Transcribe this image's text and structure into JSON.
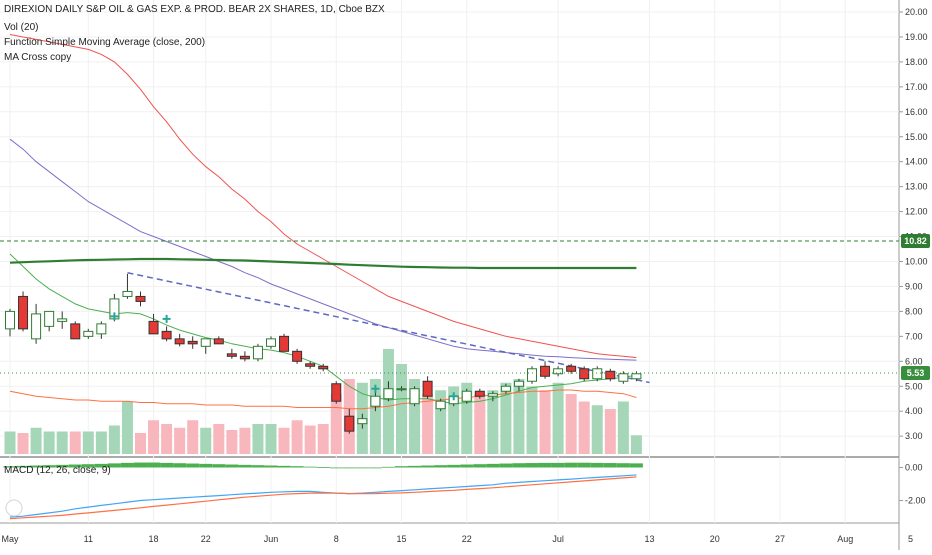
{
  "legend": {
    "title": "DIREXION DAILY S&P OIL & GAS EXP. & PROD. BEAR 2X SHARES, 1D, Cboe BZX",
    "vol": "Vol (20)",
    "sma": "Function Simple Moving Average (close, 200)",
    "ma_cross": "MA Cross copy",
    "macd": "MACD (12, 26, close, 9)"
  },
  "colors": {
    "up_body": "#ffffff",
    "up_border": "#2e7d32",
    "down_body": "#e53935",
    "down_border": "#333333",
    "vol_up": "#a5d6b8",
    "vol_down": "#f7b7bd",
    "ma_fast": "#4caf50",
    "ma_mid": "#ef5350",
    "ma_slow": "#7e6fc9",
    "ma_orange": "#ff7043",
    "sma200": "#2e7d32",
    "trend": "#5c6bc0",
    "level_high": "#2e7d32",
    "level_last": "#388e3c",
    "macd_hist": "#4caf50",
    "macd_line": "#42a5f5",
    "signal_line": "#ff7043"
  },
  "chart_data": {
    "type": "candlestick",
    "price_axis": {
      "ylim": [
        2.5,
        20.5
      ],
      "ticks": [
        "3.00",
        "4.00",
        "5.00",
        "6.00",
        "7.00",
        "8.00",
        "9.00",
        "10.00",
        "11.00",
        "12.00",
        "13.00",
        "14.00",
        "15.00",
        "16.00",
        "17.00",
        "18.00",
        "19.00",
        "20.00"
      ]
    },
    "macd_axis": {
      "ylim": [
        -3.2,
        0.6
      ],
      "ticks": [
        "0.00",
        "-2.00"
      ]
    },
    "x_axis": {
      "ticks": [
        {
          "label": "May",
          "i": 0
        },
        {
          "label": "11",
          "i": 6
        },
        {
          "label": "18",
          "i": 11
        },
        {
          "label": "22",
          "i": 15
        },
        {
          "label": "Jun",
          "i": 20
        },
        {
          "label": "8",
          "i": 25
        },
        {
          "label": "15",
          "i": 30
        },
        {
          "label": "22",
          "i": 35
        },
        {
          "label": "Jul",
          "i": 42
        },
        {
          "label": "13",
          "i": 49
        },
        {
          "label": "20",
          "i": 54
        },
        {
          "label": "27",
          "i": 59
        },
        {
          "label": "Aug",
          "i": 64
        },
        {
          "label": "5",
          "i": 69
        }
      ]
    },
    "candles": [
      {
        "o": 7.3,
        "h": 8.1,
        "l": 7.0,
        "c": 8.0
      },
      {
        "o": 8.6,
        "h": 8.8,
        "l": 7.2,
        "c": 7.3
      },
      {
        "o": 6.9,
        "h": 8.3,
        "l": 6.7,
        "c": 7.9
      },
      {
        "o": 7.4,
        "h": 8.0,
        "l": 7.2,
        "c": 8.0
      },
      {
        "o": 7.6,
        "h": 8.0,
        "l": 7.3,
        "c": 7.7
      },
      {
        "o": 7.5,
        "h": 7.6,
        "l": 6.9,
        "c": 6.9
      },
      {
        "o": 7.0,
        "h": 7.3,
        "l": 6.9,
        "c": 7.2
      },
      {
        "o": 7.1,
        "h": 7.6,
        "l": 6.9,
        "c": 7.5
      },
      {
        "o": 7.7,
        "h": 8.7,
        "l": 7.6,
        "c": 8.5
      },
      {
        "o": 8.6,
        "h": 9.5,
        "l": 8.5,
        "c": 8.8
      },
      {
        "o": 8.6,
        "h": 8.8,
        "l": 8.2,
        "c": 8.4
      },
      {
        "o": 7.6,
        "h": 7.9,
        "l": 7.1,
        "c": 7.1
      },
      {
        "o": 7.2,
        "h": 7.4,
        "l": 6.8,
        "c": 6.9
      },
      {
        "o": 6.9,
        "h": 7.1,
        "l": 6.6,
        "c": 6.7
      },
      {
        "o": 6.8,
        "h": 7.0,
        "l": 6.5,
        "c": 6.7
      },
      {
        "o": 6.6,
        "h": 6.9,
        "l": 6.3,
        "c": 6.9
      },
      {
        "o": 6.9,
        "h": 7.0,
        "l": 6.7,
        "c": 6.7
      },
      {
        "o": 6.3,
        "h": 6.5,
        "l": 6.1,
        "c": 6.2
      },
      {
        "o": 6.2,
        "h": 6.4,
        "l": 6.0,
        "c": 6.1
      },
      {
        "o": 6.1,
        "h": 6.7,
        "l": 6.0,
        "c": 6.6
      },
      {
        "o": 6.6,
        "h": 7.0,
        "l": 6.5,
        "c": 6.9
      },
      {
        "o": 7.0,
        "h": 7.1,
        "l": 6.4,
        "c": 6.4
      },
      {
        "o": 6.4,
        "h": 6.5,
        "l": 5.9,
        "c": 6.0
      },
      {
        "o": 5.9,
        "h": 6.0,
        "l": 5.7,
        "c": 5.8
      },
      {
        "o": 5.8,
        "h": 5.9,
        "l": 5.6,
        "c": 5.7
      },
      {
        "o": 5.1,
        "h": 5.2,
        "l": 4.3,
        "c": 4.4
      },
      {
        "o": 3.8,
        "h": 4.1,
        "l": 3.1,
        "c": 3.2
      },
      {
        "o": 3.5,
        "h": 3.9,
        "l": 3.3,
        "c": 3.7
      },
      {
        "o": 4.2,
        "h": 4.8,
        "l": 4.0,
        "c": 4.6
      },
      {
        "o": 4.5,
        "h": 5.2,
        "l": 4.4,
        "c": 4.9
      },
      {
        "o": 4.9,
        "h": 5.0,
        "l": 4.8,
        "c": 4.9
      },
      {
        "o": 4.3,
        "h": 5.0,
        "l": 4.2,
        "c": 4.9
      },
      {
        "o": 5.2,
        "h": 5.4,
        "l": 4.5,
        "c": 4.6
      },
      {
        "o": 4.1,
        "h": 4.5,
        "l": 4.0,
        "c": 4.4
      },
      {
        "o": 4.3,
        "h": 4.7,
        "l": 4.2,
        "c": 4.6
      },
      {
        "o": 4.4,
        "h": 4.9,
        "l": 4.3,
        "c": 4.8
      },
      {
        "o": 4.8,
        "h": 4.9,
        "l": 4.5,
        "c": 4.6
      },
      {
        "o": 4.6,
        "h": 4.8,
        "l": 4.4,
        "c": 4.7
      },
      {
        "o": 4.8,
        "h": 5.1,
        "l": 4.7,
        "c": 5.0
      },
      {
        "o": 5.0,
        "h": 5.3,
        "l": 4.8,
        "c": 5.2
      },
      {
        "o": 5.2,
        "h": 5.8,
        "l": 5.1,
        "c": 5.7
      },
      {
        "o": 5.8,
        "h": 6.0,
        "l": 5.3,
        "c": 5.4
      },
      {
        "o": 5.5,
        "h": 5.8,
        "l": 5.4,
        "c": 5.7
      },
      {
        "o": 5.8,
        "h": 5.9,
        "l": 5.5,
        "c": 5.6
      },
      {
        "o": 5.7,
        "h": 5.8,
        "l": 5.2,
        "c": 5.3
      },
      {
        "o": 5.3,
        "h": 5.8,
        "l": 5.2,
        "c": 5.7
      },
      {
        "o": 5.6,
        "h": 5.7,
        "l": 5.2,
        "c": 5.3
      },
      {
        "o": 5.2,
        "h": 5.6,
        "l": 5.1,
        "c": 5.5
      },
      {
        "o": 5.3,
        "h": 5.6,
        "l": 5.2,
        "c": 5.5
      }
    ],
    "volume": [
      0.3,
      0.28,
      0.35,
      0.3,
      0.3,
      0.3,
      0.3,
      0.3,
      0.38,
      0.7,
      0.28,
      0.45,
      0.4,
      0.35,
      0.45,
      0.35,
      0.4,
      0.32,
      0.35,
      0.4,
      0.4,
      0.35,
      0.45,
      0.38,
      0.4,
      0.8,
      1.0,
      0.95,
      1.0,
      1.4,
      1.2,
      1.0,
      0.8,
      0.85,
      0.9,
      0.95,
      0.8,
      0.85,
      0.95,
      1.0,
      0.9,
      0.85,
      0.95,
      0.8,
      0.7,
      0.65,
      0.6,
      0.7,
      0.25
    ],
    "ma_fast": [
      10.3,
      9.8,
      9.3,
      8.9,
      8.6,
      8.3,
      8.1,
      8.0,
      7.9,
      7.95,
      7.9,
      7.7,
      7.45,
      7.25,
      7.1,
      6.95,
      6.85,
      6.7,
      6.6,
      6.5,
      6.45,
      6.35,
      6.2,
      6.0,
      5.8,
      5.4,
      5.0,
      4.7,
      4.55,
      4.45,
      4.5,
      4.5,
      4.5,
      4.4,
      4.3,
      4.35,
      4.4,
      4.5,
      4.65,
      4.8,
      4.95,
      5.0,
      5.05,
      5.1,
      5.2,
      5.25,
      5.3,
      5.35,
      5.45
    ],
    "ma_mid": [
      19.1,
      19.0,
      18.9,
      18.8,
      18.7,
      18.6,
      18.5,
      18.3,
      18.0,
      17.5,
      16.9,
      16.2,
      15.6,
      14.9,
      14.3,
      13.8,
      13.4,
      12.9,
      12.5,
      12.0,
      11.6,
      11.1,
      10.7,
      10.4,
      10.1,
      9.8,
      9.5,
      9.2,
      8.9,
      8.6,
      8.4,
      8.2,
      8.0,
      7.8,
      7.6,
      7.45,
      7.3,
      7.15,
      7.0,
      6.9,
      6.8,
      6.7,
      6.6,
      6.5,
      6.4,
      6.3,
      6.25,
      6.2,
      6.15
    ],
    "ma_slow": [
      14.9,
      14.5,
      14.0,
      13.6,
      13.2,
      12.8,
      12.4,
      12.1,
      11.8,
      11.5,
      11.2,
      11.0,
      10.8,
      10.6,
      10.4,
      10.2,
      10.0,
      9.8,
      9.55,
      9.35,
      9.1,
      8.9,
      8.7,
      8.5,
      8.3,
      8.1,
      7.9,
      7.7,
      7.5,
      7.35,
      7.2,
      7.05,
      6.9,
      6.75,
      6.6,
      6.5,
      6.45,
      6.4,
      6.35,
      6.3,
      6.25,
      6.2,
      6.18,
      6.15,
      6.12,
      6.1,
      6.08,
      6.06,
      6.05
    ],
    "ma_orange": [
      4.8,
      4.7,
      4.6,
      4.55,
      4.5,
      4.45,
      4.45,
      4.4,
      4.4,
      4.4,
      4.35,
      4.35,
      4.3,
      4.3,
      4.3,
      4.25,
      4.25,
      4.25,
      4.2,
      4.2,
      4.2,
      4.2,
      4.15,
      4.15,
      4.15,
      4.15,
      4.1,
      4.1,
      4.15,
      4.2,
      4.3,
      4.35,
      4.4,
      4.45,
      4.5,
      4.55,
      4.6,
      4.65,
      4.7,
      4.75,
      4.8,
      4.8,
      4.85,
      4.85,
      4.8,
      4.8,
      4.75,
      4.7,
      4.55
    ],
    "sma200": [
      9.95,
      9.97,
      9.99,
      10.01,
      10.03,
      10.05,
      10.06,
      10.07,
      10.08,
      10.09,
      10.1,
      10.1,
      10.1,
      10.09,
      10.08,
      10.07,
      10.06,
      10.05,
      10.04,
      10.02,
      10.0,
      9.98,
      9.96,
      9.94,
      9.92,
      9.9,
      9.87,
      9.85,
      9.83,
      9.81,
      9.79,
      9.78,
      9.77,
      9.76,
      9.75,
      9.75,
      9.74,
      9.74,
      9.74,
      9.74,
      9.74,
      9.74,
      9.74,
      9.74,
      9.74,
      9.74,
      9.74,
      9.74,
      9.74
    ],
    "trendline": {
      "from": {
        "i": 9,
        "v": 9.55
      },
      "to": {
        "i": 49,
        "v": 5.15
      }
    },
    "ma_cross_markers": [
      {
        "i": 8,
        "v": 7.8
      },
      {
        "i": 12,
        "v": 7.7
      },
      {
        "i": 28,
        "v": 4.9
      },
      {
        "i": 34,
        "v": 4.6
      }
    ],
    "levels": [
      {
        "value": 10.82,
        "label": "10.82",
        "style": "dashed"
      },
      {
        "value": 5.53,
        "label": "5.53",
        "style": "dotted"
      }
    ],
    "macd": {
      "hist": [
        0.08,
        0.1,
        0.12,
        0.14,
        0.16,
        0.18,
        0.2,
        0.22,
        0.25,
        0.28,
        0.3,
        0.3,
        0.28,
        0.26,
        0.24,
        0.22,
        0.2,
        0.18,
        0.16,
        0.14,
        0.12,
        0.1,
        0.08,
        0.05,
        0.02,
        -0.02,
        -0.05,
        -0.04,
        0.0,
        0.04,
        0.08,
        0.1,
        0.12,
        0.14,
        0.16,
        0.18,
        0.2,
        0.22,
        0.24,
        0.26,
        0.27,
        0.28,
        0.28,
        0.29,
        0.29,
        0.28,
        0.27,
        0.26,
        0.25
      ],
      "macd_line": [
        -3.0,
        -2.95,
        -2.85,
        -2.75,
        -2.65,
        -2.5,
        -2.4,
        -2.3,
        -2.2,
        -2.1,
        -2.0,
        -1.95,
        -1.9,
        -1.85,
        -1.8,
        -1.75,
        -1.7,
        -1.65,
        -1.6,
        -1.55,
        -1.5,
        -1.47,
        -1.45,
        -1.45,
        -1.5,
        -1.55,
        -1.58,
        -1.55,
        -1.5,
        -1.45,
        -1.4,
        -1.35,
        -1.3,
        -1.25,
        -1.2,
        -1.15,
        -1.1,
        -1.05,
        -0.95,
        -0.9,
        -0.85,
        -0.8,
        -0.75,
        -0.7,
        -0.65,
        -0.6,
        -0.55,
        -0.5,
        -0.45
      ],
      "signal_line": [
        -3.1,
        -3.05,
        -3.0,
        -2.95,
        -2.9,
        -2.82,
        -2.75,
        -2.67,
        -2.6,
        -2.52,
        -2.44,
        -2.36,
        -2.28,
        -2.2,
        -2.12,
        -2.04,
        -1.96,
        -1.88,
        -1.8,
        -1.74,
        -1.68,
        -1.62,
        -1.58,
        -1.55,
        -1.55,
        -1.56,
        -1.58,
        -1.59,
        -1.58,
        -1.56,
        -1.54,
        -1.5,
        -1.46,
        -1.42,
        -1.38,
        -1.33,
        -1.28,
        -1.23,
        -1.17,
        -1.11,
        -1.05,
        -0.99,
        -0.93,
        -0.87,
        -0.81,
        -0.75,
        -0.69,
        -0.63,
        -0.57
      ]
    }
  }
}
